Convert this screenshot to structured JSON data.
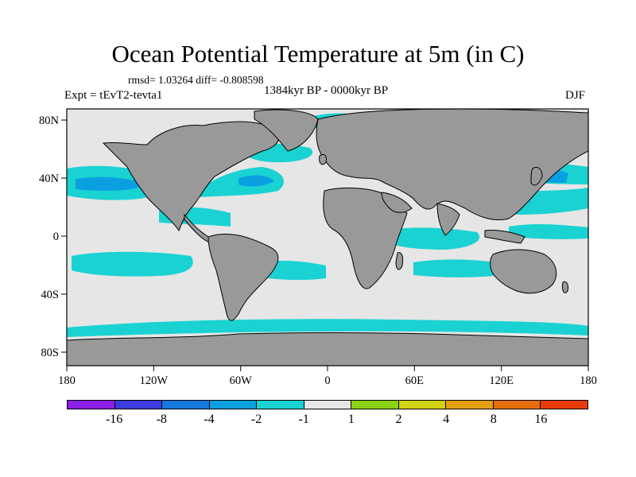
{
  "title": "Ocean Potential Temperature at 5m (in C)",
  "stats": "rmsd= 1.03264 diff= -0.808598",
  "period": "1384kyr BP - 0000kyr BP",
  "expt": "Expt = tEvT2-tevta1",
  "season": "DJF",
  "colors": {
    "land": "#999999",
    "ocean_neutral": "#e6e6e6",
    "anom_minus2_minus1": "#1ad2d2",
    "anom_minus4_minus2": "#0aa0e0",
    "anom_minus8_minus4": "#1478dc",
    "coast": "#000000"
  },
  "map": {
    "x_ticks": [
      "180",
      "120W",
      "60W",
      "0",
      "60E",
      "120E",
      "180"
    ],
    "y_ticks": [
      "80N",
      "40N",
      "0",
      "40S",
      "80S"
    ]
  },
  "legend": {
    "colors": [
      "#8c1ee6",
      "#3c3cdc",
      "#1478dc",
      "#0aa0e0",
      "#1ad2d2",
      "#e6e6e6",
      "#8cd214",
      "#d2d214",
      "#e6a014",
      "#e66e0a",
      "#e63c0a"
    ],
    "labels": [
      "-16",
      "-8",
      "-4",
      "-2",
      "-1",
      "1",
      "2",
      "4",
      "8",
      "16"
    ]
  }
}
